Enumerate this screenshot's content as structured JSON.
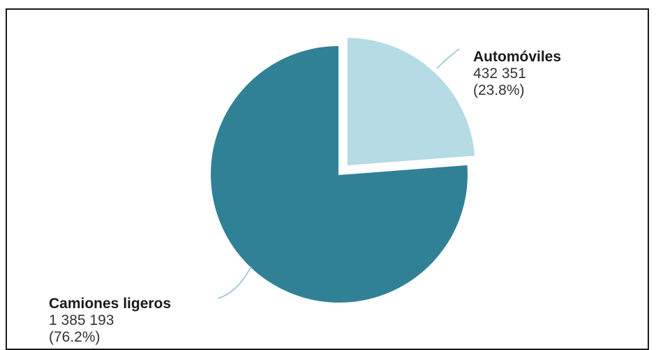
{
  "chart_data": {
    "type": "pie",
    "title": "",
    "slices": [
      {
        "label": "Automóviles",
        "value": 432351,
        "value_text": "432 351",
        "percent_text": "(23.8%)",
        "color": "#b5dbe4",
        "exploded": true
      },
      {
        "label": "Camiones ligeros",
        "value": 1385193,
        "value_text": "1 385 193",
        "percent_text": "(76.2%)",
        "color": "#318196",
        "exploded": false
      }
    ],
    "start_angle": "12 o'clock, clockwise",
    "leader_line_color": "#8fbfd0"
  }
}
